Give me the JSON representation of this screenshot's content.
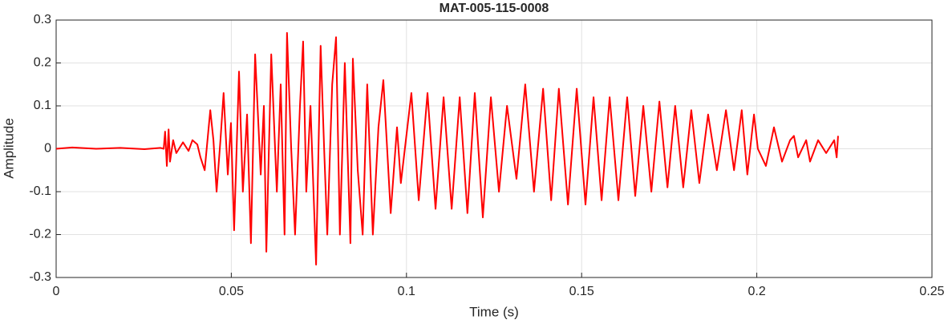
{
  "chart_data": {
    "type": "line",
    "title": "MAT-005-115-0008",
    "xlabel": "Time (s)",
    "ylabel": "Amplitude",
    "color": "#ff0000",
    "grid": true,
    "xlim": [
      0,
      0.25
    ],
    "xticks": [
      0,
      0.05,
      0.1,
      0.15,
      0.2,
      0.25
    ],
    "ylim": [
      -0.3,
      0.3
    ],
    "yticks": [
      -0.3,
      -0.2,
      -0.1,
      0,
      0.1,
      0.2,
      0.3
    ],
    "x": [
      0,
      0.0046,
      0.0114,
      0.0183,
      0.0252,
      0.0298,
      0.0307,
      0.0311,
      0.0316,
      0.0321,
      0.0325,
      0.0334,
      0.0343,
      0.0362,
      0.0378,
      0.0389,
      0.0403,
      0.0412,
      0.0424,
      0.044,
      0.0449,
      0.0458,
      0.0469,
      0.0478,
      0.049,
      0.0499,
      0.0508,
      0.0522,
      0.0533,
      0.0545,
      0.0556,
      0.0568,
      0.0584,
      0.0593,
      0.06,
      0.0614,
      0.063,
      0.0641,
      0.0652,
      0.0659,
      0.0671,
      0.0682,
      0.0696,
      0.0705,
      0.0714,
      0.0726,
      0.0742,
      0.0755,
      0.0765,
      0.0774,
      0.0788,
      0.0799,
      0.081,
      0.0824,
      0.084,
      0.0847,
      0.0861,
      0.0875,
      0.0888,
      0.0904,
      0.092,
      0.0934,
      0.0955,
      0.0973,
      0.0984,
      0.1014,
      0.1035,
      0.106,
      0.1083,
      0.1106,
      0.1129,
      0.1152,
      0.1174,
      0.1195,
      0.1218,
      0.1241,
      0.1264,
      0.1287,
      0.1314,
      0.1339,
      0.1364,
      0.139,
      0.1413,
      0.1435,
      0.1461,
      0.1486,
      0.1511,
      0.1534,
      0.1557,
      0.158,
      0.1605,
      0.163,
      0.1653,
      0.1676,
      0.1699,
      0.1722,
      0.1745,
      0.1767,
      0.179,
      0.1813,
      0.1836,
      0.1861,
      0.1886,
      0.1912,
      0.1935,
      0.1957,
      0.1973,
      0.1992,
      0.2003,
      0.2026,
      0.2049,
      0.2072,
      0.2095,
      0.2106,
      0.2118,
      0.2141,
      0.2152,
      0.2175,
      0.2198,
      0.2221,
      0.2228,
      0.2232
    ],
    "values": [
      0,
      0.003,
      0,
      0.002,
      -0.001,
      0.002,
      0,
      0.04,
      -0.04,
      0.045,
      -0.03,
      0.02,
      -0.01,
      0.015,
      -0.005,
      0.02,
      0.01,
      -0.02,
      -0.05,
      0.09,
      0.02,
      -0.1,
      0.02,
      0.13,
      -0.06,
      0.06,
      -0.19,
      0.18,
      -0.1,
      0.08,
      -0.22,
      0.22,
      -0.06,
      0.1,
      -0.24,
      0.22,
      -0.1,
      0.15,
      -0.2,
      0.27,
      0,
      -0.2,
      0.1,
      0.25,
      -0.1,
      0.1,
      -0.27,
      0.24,
      0,
      -0.2,
      0.15,
      0.26,
      -0.2,
      0.2,
      -0.22,
      0.21,
      -0.05,
      -0.2,
      0.15,
      -0.2,
      0.05,
      0.16,
      -0.15,
      0.05,
      -0.08,
      0.13,
      -0.12,
      0.13,
      -0.14,
      0.12,
      -0.14,
      0.12,
      -0.15,
      0.13,
      -0.16,
      0.12,
      -0.1,
      0.1,
      -0.07,
      0.15,
      -0.1,
      0.14,
      -0.12,
      0.14,
      -0.13,
      0.14,
      -0.13,
      0.12,
      -0.12,
      0.12,
      -0.12,
      0.12,
      -0.11,
      0.1,
      -0.1,
      0.11,
      -0.09,
      0.1,
      -0.09,
      0.09,
      -0.08,
      0.08,
      -0.05,
      0.09,
      -0.05,
      0.09,
      -0.06,
      0.08,
      0,
      -0.04,
      0.05,
      -0.03,
      0.02,
      0.03,
      -0.02,
      0.02,
      -0.03,
      0.02,
      -0.01,
      0.02,
      -0.02,
      0.03
    ]
  }
}
